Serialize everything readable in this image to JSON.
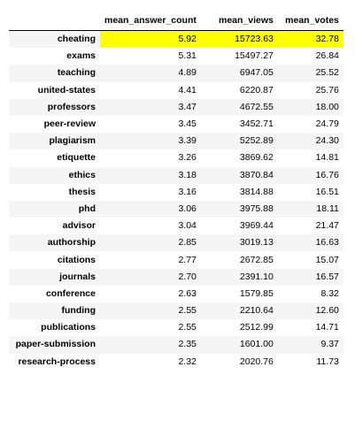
{
  "table": {
    "columns": [
      "",
      "mean_answer_count",
      "mean_views",
      "mean_votes"
    ],
    "highlight_color": "#ffff00",
    "highlighted_row": 0,
    "rows": [
      {
        "index": "cheating",
        "mean_answer_count": "5.92",
        "mean_views": "15723.63",
        "mean_votes": "32.78"
      },
      {
        "index": "exams",
        "mean_answer_count": "5.31",
        "mean_views": "15497.27",
        "mean_votes": "26.84"
      },
      {
        "index": "teaching",
        "mean_answer_count": "4.89",
        "mean_views": "6947.05",
        "mean_votes": "25.52"
      },
      {
        "index": "united-states",
        "mean_answer_count": "4.41",
        "mean_views": "6220.87",
        "mean_votes": "25.76"
      },
      {
        "index": "professors",
        "mean_answer_count": "3.47",
        "mean_views": "4672.55",
        "mean_votes": "18.00"
      },
      {
        "index": "peer-review",
        "mean_answer_count": "3.45",
        "mean_views": "3452.71",
        "mean_votes": "24.79"
      },
      {
        "index": "plagiarism",
        "mean_answer_count": "3.39",
        "mean_views": "5252.89",
        "mean_votes": "24.30"
      },
      {
        "index": "etiquette",
        "mean_answer_count": "3.26",
        "mean_views": "3869.62",
        "mean_votes": "14.81"
      },
      {
        "index": "ethics",
        "mean_answer_count": "3.18",
        "mean_views": "3870.84",
        "mean_votes": "16.76"
      },
      {
        "index": "thesis",
        "mean_answer_count": "3.16",
        "mean_views": "3814.88",
        "mean_votes": "16.51"
      },
      {
        "index": "phd",
        "mean_answer_count": "3.06",
        "mean_views": "3975.88",
        "mean_votes": "18.11"
      },
      {
        "index": "advisor",
        "mean_answer_count": "3.04",
        "mean_views": "3969.44",
        "mean_votes": "21.47"
      },
      {
        "index": "authorship",
        "mean_answer_count": "2.85",
        "mean_views": "3019.13",
        "mean_votes": "16.63"
      },
      {
        "index": "citations",
        "mean_answer_count": "2.77",
        "mean_views": "2672.85",
        "mean_votes": "15.07"
      },
      {
        "index": "journals",
        "mean_answer_count": "2.70",
        "mean_views": "2391.10",
        "mean_votes": "16.57"
      },
      {
        "index": "conference",
        "mean_answer_count": "2.63",
        "mean_views": "1579.85",
        "mean_votes": "8.32"
      },
      {
        "index": "funding",
        "mean_answer_count": "2.55",
        "mean_views": "2210.64",
        "mean_votes": "12.60"
      },
      {
        "index": "publications",
        "mean_answer_count": "2.55",
        "mean_views": "2512.99",
        "mean_votes": "14.71"
      },
      {
        "index": "paper-submission",
        "mean_answer_count": "2.35",
        "mean_views": "1601.00",
        "mean_votes": "9.37"
      },
      {
        "index": "research-process",
        "mean_answer_count": "2.32",
        "mean_views": "2020.76",
        "mean_votes": "11.73"
      }
    ]
  }
}
